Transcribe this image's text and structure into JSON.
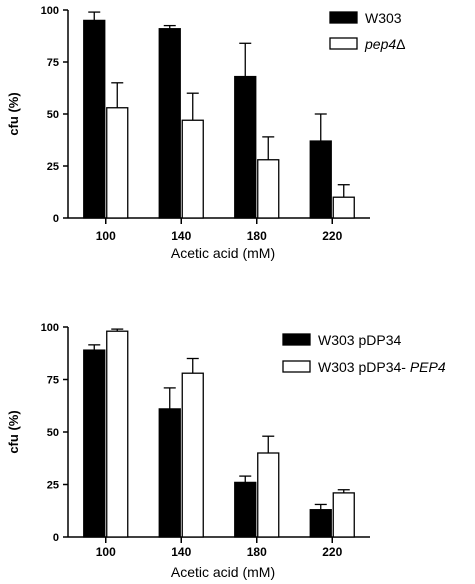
{
  "chart_data": [
    {
      "type": "bar",
      "categories": [
        "100",
        "140",
        "180",
        "220"
      ],
      "xlabel": "Acetic acid (mM)",
      "ylabel": "cfu (%)",
      "ylim": [
        0,
        100
      ],
      "yticks": [
        0,
        25,
        50,
        75,
        100
      ],
      "legend_position": "top-right",
      "series": [
        {
          "name": "W303",
          "name_parts": [
            {
              "text": "W303",
              "italic": false
            }
          ],
          "fill": "#000000",
          "values": [
            95,
            91,
            68,
            37
          ],
          "errors": [
            4,
            1.5,
            16,
            13
          ]
        },
        {
          "name": "pep4Δ",
          "name_parts": [
            {
              "text": "pep4",
              "italic": true
            },
            {
              "text": "Δ",
              "italic": false
            }
          ],
          "fill": "#ffffff",
          "values": [
            53,
            47,
            28,
            10
          ],
          "errors": [
            12,
            13,
            11,
            6
          ]
        }
      ]
    },
    {
      "type": "bar",
      "categories": [
        "100",
        "140",
        "180",
        "220"
      ],
      "xlabel": "Acetic acid (mM)",
      "ylabel": "cfu (%)",
      "ylim": [
        0,
        100
      ],
      "yticks": [
        0,
        25,
        50,
        75,
        100
      ],
      "legend_position": "top-right",
      "series": [
        {
          "name": "W303 pDP34",
          "name_parts": [
            {
              "text": "W303 pDP34",
              "italic": false
            }
          ],
          "fill": "#000000",
          "values": [
            89,
            61,
            26,
            13
          ],
          "errors": [
            2.5,
            10,
            3,
            2.5
          ]
        },
        {
          "name": "W303 pDP34-PEP4",
          "name_parts": [
            {
              "text": "W303 pDP34- ",
              "italic": false
            },
            {
              "text": "PEP4",
              "italic": true
            }
          ],
          "fill": "#ffffff",
          "values": [
            98,
            78,
            40,
            21
          ],
          "errors": [
            1,
            7,
            8,
            1.5
          ]
        }
      ]
    }
  ]
}
